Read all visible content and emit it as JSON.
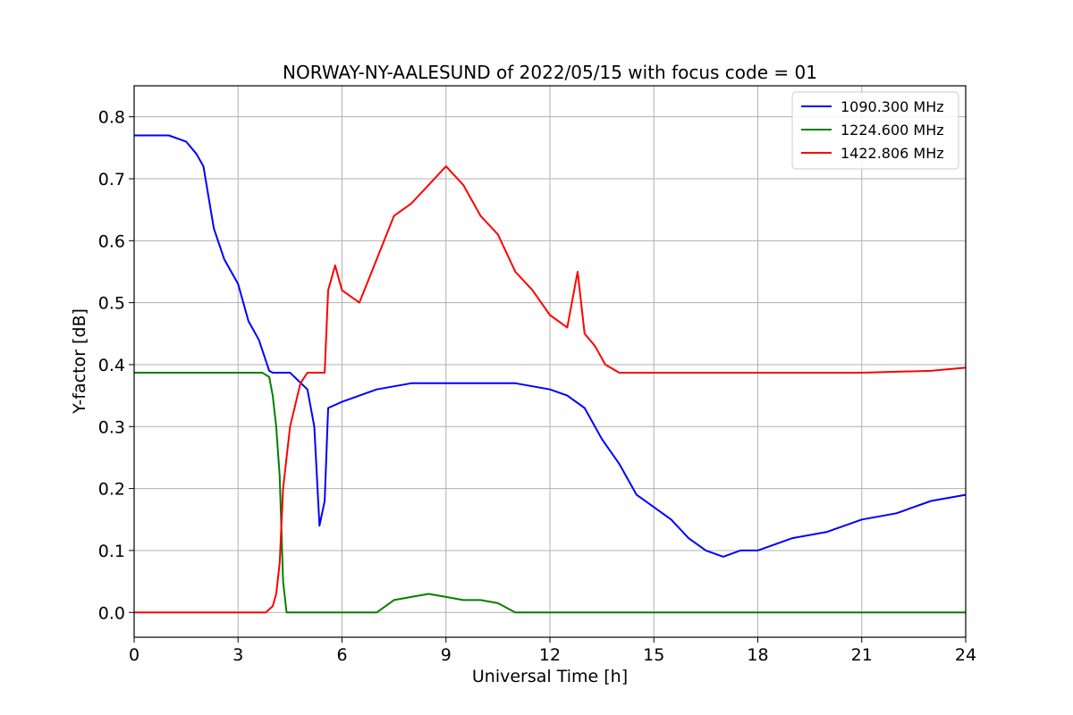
{
  "chart_data": {
    "type": "line",
    "title": "NORWAY-NY-AALESUND of 2022/05/15 with focus code = 01",
    "xlabel": "Universal Time [h]",
    "ylabel": "Y-factor [dB]",
    "xlim": [
      0,
      24
    ],
    "ylim": [
      -0.04,
      0.85
    ],
    "x_ticks": [
      0,
      3,
      6,
      9,
      12,
      15,
      18,
      21,
      24
    ],
    "y_ticks": [
      0.0,
      0.1,
      0.2,
      0.3,
      0.4,
      0.5,
      0.6,
      0.7,
      0.8
    ],
    "x_tick_labels": [
      "0",
      "3",
      "6",
      "9",
      "12",
      "15",
      "18",
      "21",
      "24"
    ],
    "y_tick_labels": [
      "0.0",
      "0.1",
      "0.2",
      "0.3",
      "0.4",
      "0.5",
      "0.6",
      "0.7",
      "0.8"
    ],
    "grid": true,
    "legend_position": "top-right",
    "series": [
      {
        "name": "1090.300 MHz",
        "color": "#0000ff",
        "x": [
          0,
          0.5,
          1.0,
          1.5,
          1.8,
          2.0,
          2.3,
          2.6,
          3.0,
          3.3,
          3.6,
          3.9,
          4.0,
          4.5,
          5.0,
          5.2,
          5.35,
          5.5,
          5.6,
          6.0,
          7.0,
          8.0,
          9.0,
          10.0,
          11.0,
          12.0,
          12.5,
          13.0,
          13.5,
          14.0,
          14.5,
          15.0,
          15.5,
          16.0,
          16.5,
          17.0,
          17.5,
          18.0,
          19.0,
          20.0,
          21.0,
          22.0,
          23.0,
          24.0
        ],
        "y": [
          0.77,
          0.77,
          0.77,
          0.76,
          0.74,
          0.72,
          0.62,
          0.57,
          0.53,
          0.47,
          0.44,
          0.39,
          0.387,
          0.387,
          0.36,
          0.3,
          0.14,
          0.18,
          0.33,
          0.34,
          0.36,
          0.37,
          0.37,
          0.37,
          0.37,
          0.36,
          0.35,
          0.33,
          0.28,
          0.24,
          0.19,
          0.17,
          0.15,
          0.12,
          0.1,
          0.09,
          0.1,
          0.1,
          0.12,
          0.13,
          0.15,
          0.16,
          0.18,
          0.19
        ]
      },
      {
        "name": "1224.600 MHz",
        "color": "#008000",
        "x": [
          0,
          0.6,
          1.0,
          2.0,
          3.0,
          3.7,
          3.9,
          4.0,
          4.1,
          4.2,
          4.3,
          4.4,
          5.0,
          6.0,
          7.0,
          7.5,
          8.0,
          8.5,
          9.0,
          9.5,
          10.0,
          10.5,
          11.0,
          12.0,
          13.0,
          15.0,
          18.0,
          21.0,
          23.0,
          24.0
        ],
        "y": [
          0.387,
          0.387,
          0.387,
          0.387,
          0.387,
          0.387,
          0.38,
          0.35,
          0.3,
          0.22,
          0.05,
          0.0,
          0.0,
          0.0,
          0.0,
          0.02,
          0.025,
          0.03,
          0.025,
          0.02,
          0.02,
          0.015,
          0.0,
          0.0,
          0.0,
          0.0,
          0.0,
          0.0,
          0.0,
          0.0
        ]
      },
      {
        "name": "1422.806 MHz",
        "color": "#ff0000",
        "x": [
          0,
          1.0,
          2.0,
          3.0,
          3.8,
          4.0,
          4.1,
          4.2,
          4.3,
          4.5,
          4.8,
          5.0,
          5.5,
          5.6,
          5.8,
          6.0,
          6.5,
          7.0,
          7.5,
          8.0,
          8.5,
          9.0,
          9.5,
          10.0,
          10.5,
          11.0,
          11.5,
          12.0,
          12.5,
          12.8,
          13.0,
          13.3,
          13.6,
          14.0,
          15.0,
          18.0,
          21.0,
          23.0,
          24.0
        ],
        "y": [
          0.0,
          0.0,
          0.0,
          0.0,
          0.0,
          0.01,
          0.03,
          0.08,
          0.2,
          0.3,
          0.37,
          0.387,
          0.387,
          0.52,
          0.56,
          0.52,
          0.5,
          0.57,
          0.64,
          0.66,
          0.69,
          0.72,
          0.69,
          0.64,
          0.61,
          0.55,
          0.52,
          0.48,
          0.46,
          0.55,
          0.45,
          0.43,
          0.4,
          0.387,
          0.387,
          0.387,
          0.387,
          0.39,
          0.395
        ]
      }
    ]
  }
}
